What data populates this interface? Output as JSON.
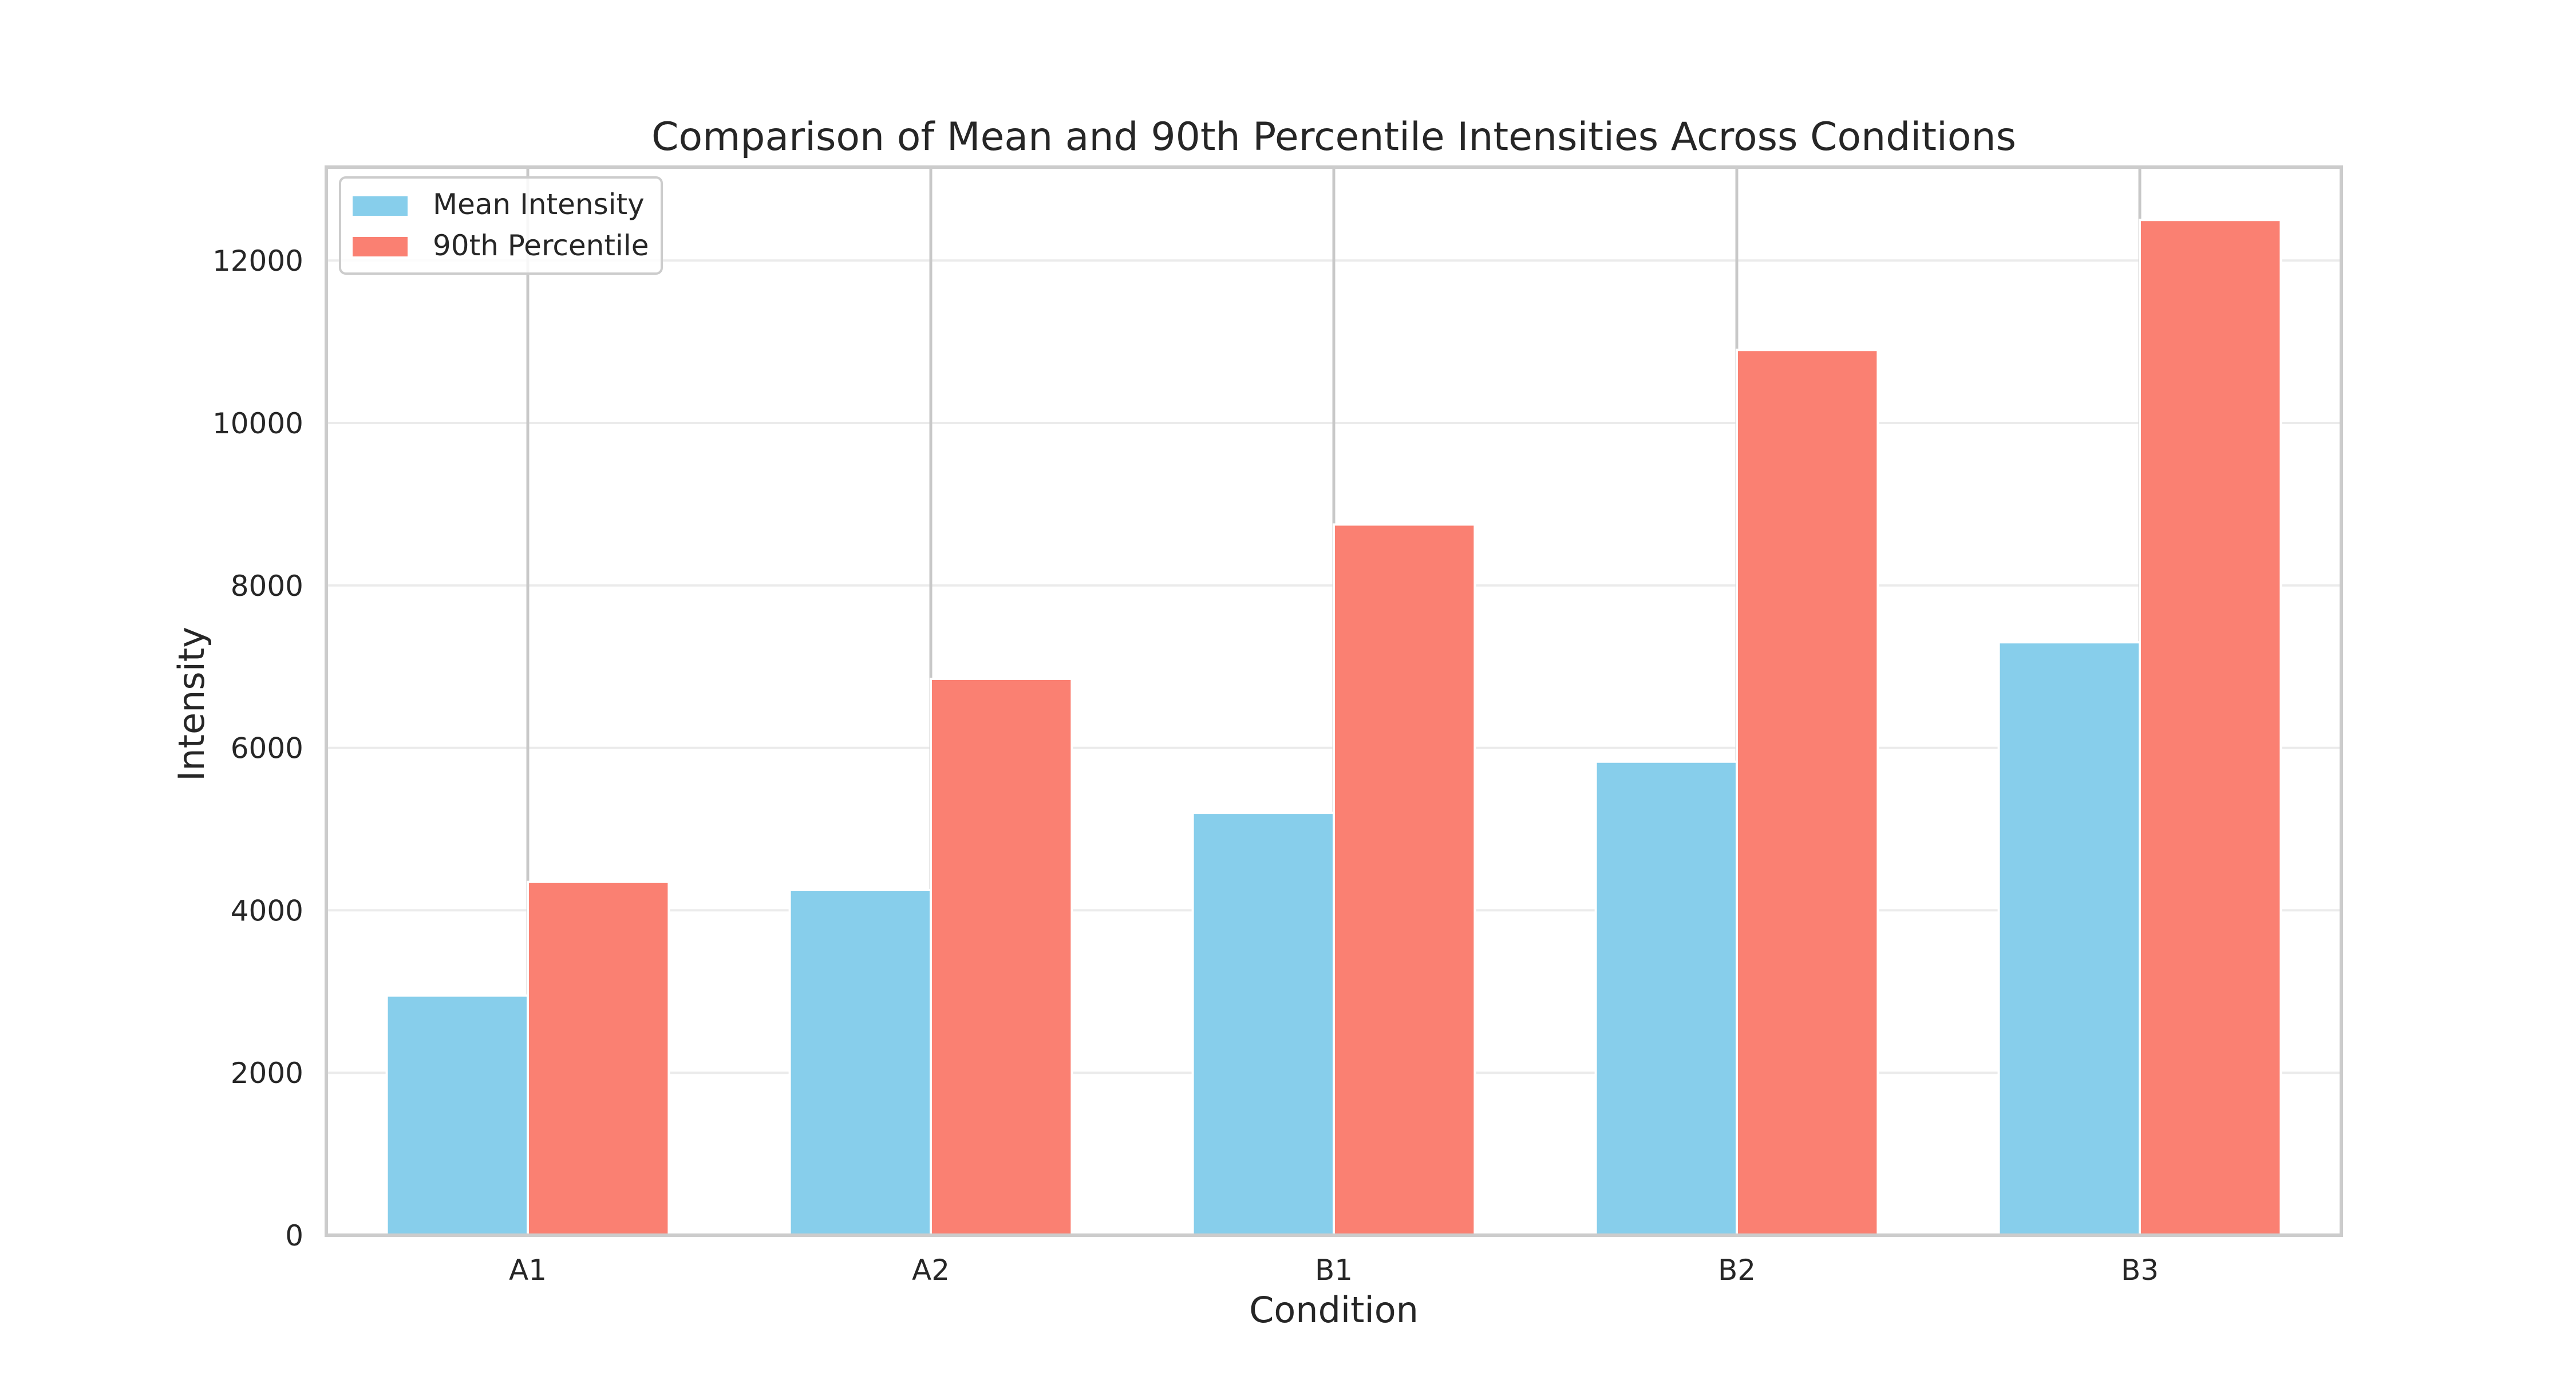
{
  "chart_data": {
    "type": "bar",
    "title": "Comparison of Mean and 90th Percentile Intensities Across Conditions",
    "xlabel": "Condition",
    "ylabel": "Intensity",
    "categories": [
      "A1",
      "A2",
      "B1",
      "B2",
      "B3"
    ],
    "series": [
      {
        "name": "Mean Intensity",
        "color": "#87ceeb",
        "values": [
          2950,
          4250,
          5200,
          5830,
          7300
        ],
        "error_upper": [
          4400,
          6900,
          8800,
          10950,
          12550
        ]
      },
      {
        "name": "90th Percentile",
        "color": "#fa8072",
        "values": [
          4350,
          6850,
          8750,
          10900,
          12500
        ],
        "error_upper": [
          13150,
          13150,
          13150,
          13150,
          13150
        ]
      }
    ],
    "ylim": [
      0,
      13150
    ],
    "yticks": [
      0,
      2000,
      4000,
      6000,
      8000,
      10000,
      12000
    ],
    "grid": true,
    "legend_position": "top-left"
  }
}
